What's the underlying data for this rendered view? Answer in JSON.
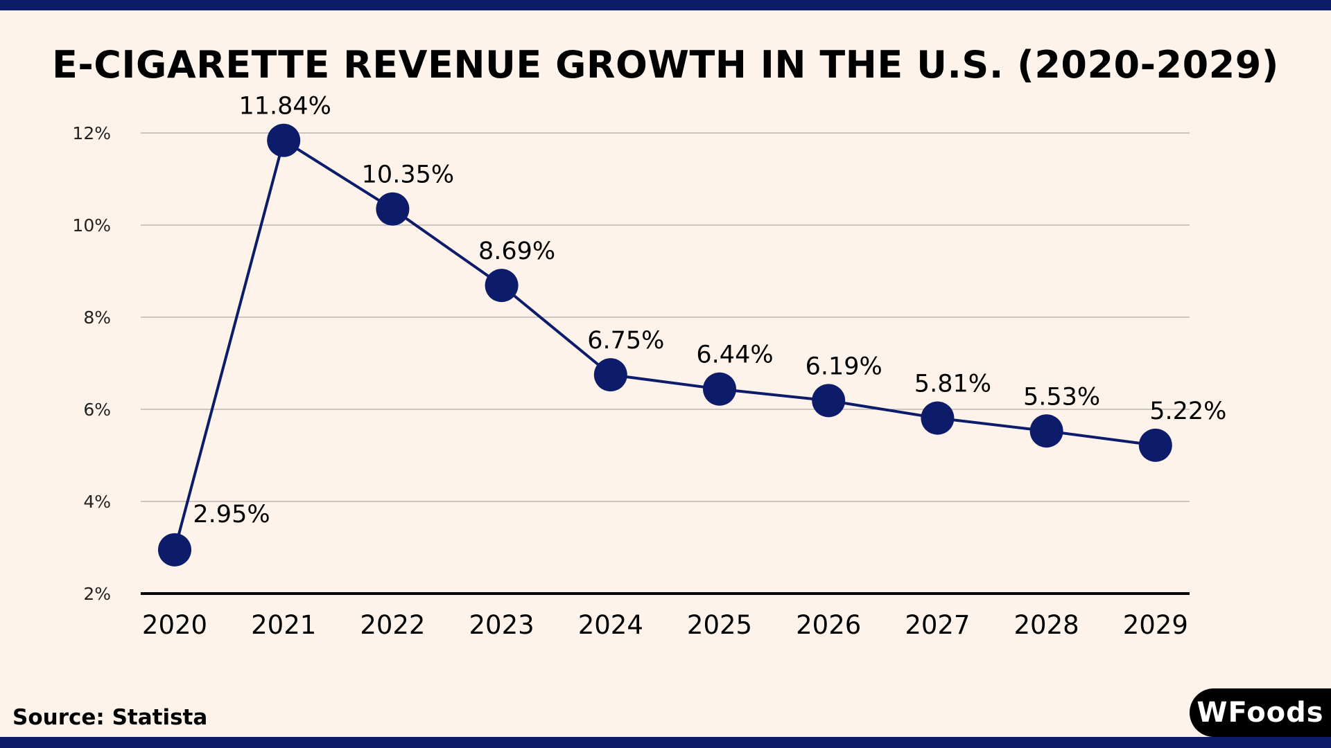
{
  "title": "E-CIGARETTE REVENUE GROWTH IN THE U.S. (2020-2029)",
  "source": "Source: Statista",
  "logo_text": "WFoods",
  "colors": {
    "background": "#fdf3ea",
    "accent": "#0d1b6b",
    "line": "#0d1b6b"
  },
  "chart_data": {
    "type": "line",
    "title": "E-CIGARETTE REVENUE GROWTH IN THE U.S. (2020-2029)",
    "xlabel": "",
    "ylabel": "",
    "categories": [
      "2020",
      "2021",
      "2022",
      "2023",
      "2024",
      "2025",
      "2026",
      "2027",
      "2028",
      "2029"
    ],
    "values": [
      2.95,
      11.84,
      10.35,
      8.69,
      6.75,
      6.44,
      6.19,
      5.81,
      5.53,
      5.22
    ],
    "data_labels": [
      "2.95%",
      "11.84%",
      "10.35%",
      "8.69%",
      "6.75%",
      "6.44%",
      "6.19%",
      "5.81%",
      "5.53%",
      "5.22%"
    ],
    "ylim": [
      2,
      12
    ],
    "yticks": [
      2,
      4,
      6,
      8,
      10,
      12
    ],
    "ytick_labels": [
      "2%",
      "4%",
      "6%",
      "8%",
      "10%",
      "12%"
    ],
    "grid": true,
    "legend": "none"
  }
}
